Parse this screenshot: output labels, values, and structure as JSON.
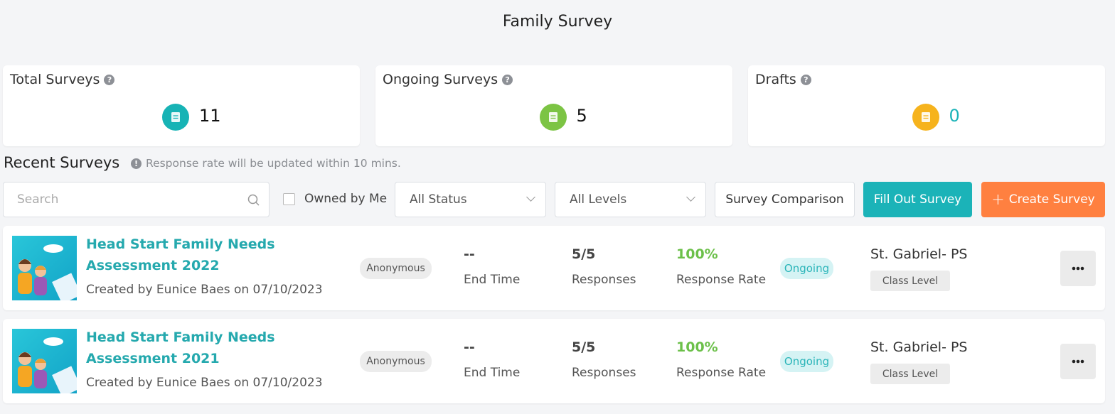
{
  "header": {
    "title": "Family Survey"
  },
  "stats": [
    {
      "label": "Total Surveys",
      "value": 11
    },
    {
      "label": "Ongoing Surveys",
      "value": 5
    },
    {
      "label": "Drafts",
      "value": 0
    }
  ],
  "recent": {
    "title": "Recent Surveys",
    "note": "Response rate will be updated within 10 mins."
  },
  "toolbar": {
    "search": "Search",
    "owned": "Owned by Me",
    "status": "All Status",
    "levels": "All Levels",
    "comparison": "Survey Comparison",
    "fill": "Fill Out Survey",
    "create": "Create Survey"
  },
  "surveys": [
    {
      "title": "Head Start Family Needs Assessment 2022",
      "created": "Created by Eunice Baes on 07/10/2023",
      "privacy": "Anonymous",
      "end": "--",
      "end_label": "End Time",
      "responses": "5/5",
      "responses_label": "Responses",
      "rate": "100%",
      "rate_label": "Response Rate",
      "status": "Ongoing",
      "school": "St. Gabriel- PS",
      "level": "Class Level"
    },
    {
      "title": "Head Start Family Needs Assessment 2021",
      "created": "Created by Eunice Baes on 07/10/2023",
      "privacy": "Anonymous",
      "end": "--",
      "end_label": "End Time",
      "responses": "5/5",
      "responses_label": "Responses",
      "rate": "100%",
      "rate_label": "Response Rate",
      "status": "Ongoing",
      "school": "St. Gabriel- PS",
      "level": "Class Level"
    }
  ]
}
